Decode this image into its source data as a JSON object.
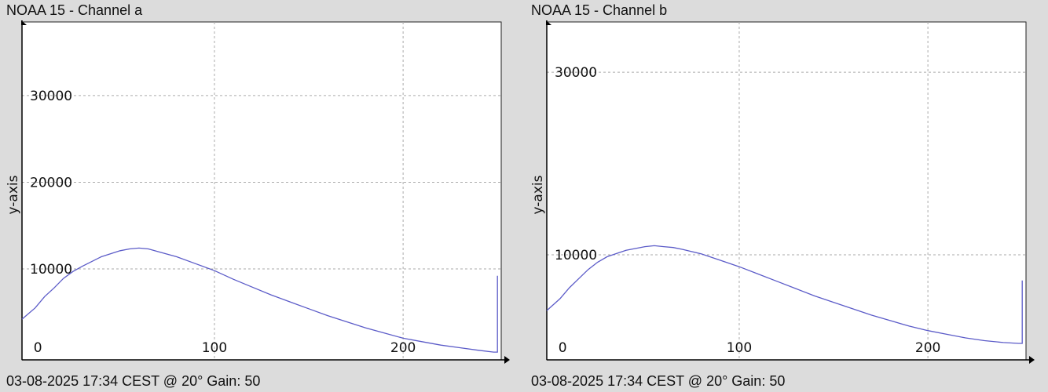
{
  "chart_data": [
    {
      "type": "line",
      "title": "NOAA 15 - Channel a",
      "footer": "03-08-2025 17:34 CEST @ 20° Gain: 50",
      "ylabel": "y-axis",
      "xlabel": "",
      "xlim": [
        -2,
        252
      ],
      "ylim": [
        -500,
        38500
      ],
      "x_ticks": [
        0,
        100,
        200
      ],
      "y_ticks": [
        10000,
        20000,
        30000
      ],
      "grid": true,
      "line_color": "#5b5bc8",
      "series": [
        {
          "x": [
            -2,
            5,
            10,
            15,
            20,
            25,
            30,
            40,
            50,
            55,
            60,
            65,
            70,
            80,
            90,
            100,
            110,
            120,
            130,
            140,
            150,
            160,
            170,
            180,
            190,
            200,
            210,
            220,
            230,
            240,
            248,
            250,
            250
          ],
          "y": [
            4200,
            5500,
            6800,
            7800,
            8900,
            9700,
            10300,
            11400,
            12100,
            12300,
            12400,
            12300,
            12000,
            11400,
            10600,
            9800,
            8800,
            7900,
            7000,
            6200,
            5400,
            4600,
            3900,
            3200,
            2600,
            2000,
            1600,
            1200,
            900,
            600,
            400,
            400,
            9200
          ]
        }
      ]
    },
    {
      "type": "line",
      "title": "NOAA 15 - Channel b",
      "footer": "03-08-2025 17:34 CEST @ 20° Gain: 50",
      "ylabel": "y-axis",
      "xlabel": "",
      "xlim": [
        -2,
        252
      ],
      "ylim": [
        -1500,
        35500
      ],
      "x_ticks": [
        0,
        100,
        200
      ],
      "y_ticks": [
        10000,
        30000
      ],
      "grid": true,
      "line_color": "#5b5bc8",
      "series": [
        {
          "x": [
            -2,
            5,
            10,
            15,
            20,
            25,
            30,
            40,
            50,
            55,
            60,
            65,
            70,
            80,
            90,
            100,
            110,
            120,
            130,
            140,
            150,
            160,
            170,
            180,
            190,
            200,
            210,
            220,
            230,
            240,
            248,
            250,
            250
          ],
          "y": [
            3900,
            5200,
            6400,
            7400,
            8400,
            9200,
            9800,
            10500,
            10900,
            11000,
            10900,
            10800,
            10600,
            10100,
            9400,
            8700,
            7900,
            7100,
            6300,
            5500,
            4800,
            4100,
            3400,
            2800,
            2200,
            1700,
            1300,
            900,
            600,
            400,
            300,
            300,
            7200
          ]
        }
      ]
    }
  ]
}
